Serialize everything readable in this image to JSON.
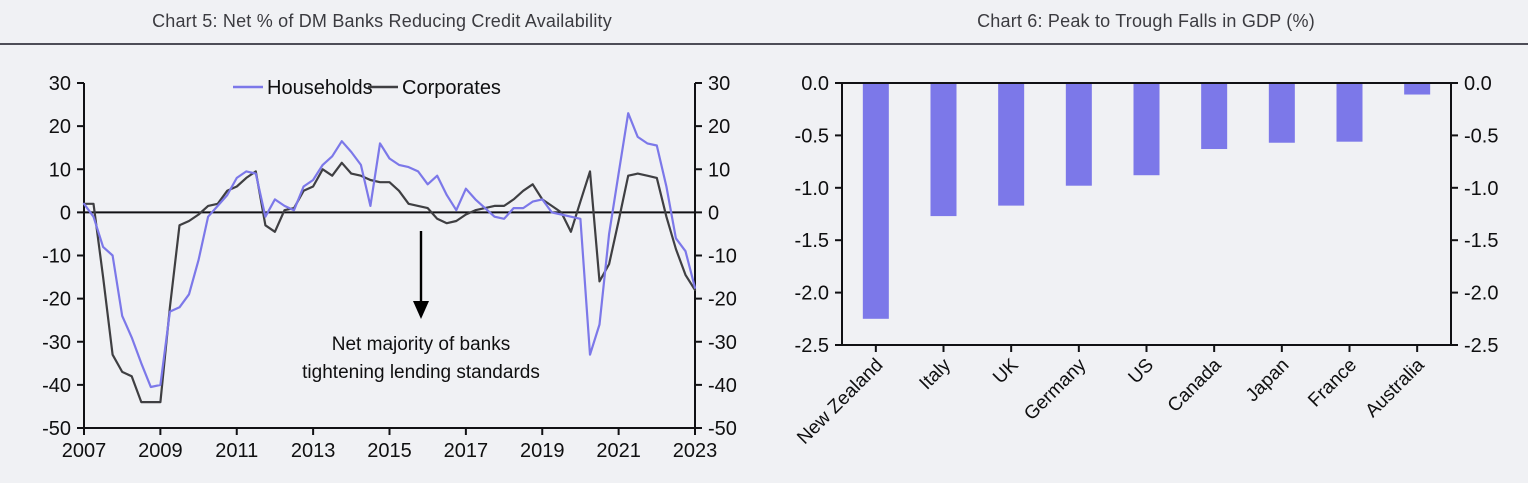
{
  "page": {
    "background_color": "#f0f1f4",
    "accent_purple": "#7c78e9",
    "accent_dark": "#3f3f42"
  },
  "chart_data": [
    {
      "type": "line",
      "title": "Chart 5: Net % of DM Banks Reducing Credit Availability",
      "xlabel": "",
      "ylabel": "",
      "x_start": 2007,
      "x_step": 0.25,
      "xlim": [
        2007,
        2023
      ],
      "ylim": [
        -50,
        30
      ],
      "xtick_labels": [
        "2007",
        "2009",
        "2011",
        "2013",
        "2015",
        "2017",
        "2019",
        "2021",
        "2023"
      ],
      "xtick_values": [
        2007,
        2009,
        2011,
        2013,
        2015,
        2017,
        2019,
        2021,
        2023
      ],
      "ytick_labels": [
        "30",
        "20",
        "10",
        "0",
        "-10",
        "-20",
        "-30",
        "-40",
        "-50"
      ],
      "ytick_values": [
        30,
        20,
        10,
        0,
        -10,
        -20,
        -30,
        -40,
        -50
      ],
      "grid": false,
      "zero_line": true,
      "legend_position": "top-center",
      "annotation": {
        "arrow": "down",
        "line1": "Net majority of banks",
        "line2": "tightening lending standards"
      },
      "series": [
        {
          "name": "Households",
          "color": "#7c78e9",
          "values": [
            2,
            -1,
            -8,
            -10,
            -24,
            -29,
            -35,
            -40.5,
            -40,
            -23,
            -22,
            -19,
            -11,
            -1,
            1.5,
            4,
            8,
            9.5,
            9,
            -1,
            3,
            1.5,
            0.5,
            6,
            7.5,
            11,
            13,
            16.5,
            14,
            11,
            1.5,
            16,
            12.5,
            11,
            10.5,
            9.5,
            6.5,
            8.5,
            4,
            0.5,
            5.5,
            3,
            1,
            -1,
            -1.5,
            1,
            1,
            2.5,
            3,
            0,
            -0.5,
            -1,
            -1.5,
            -33,
            -26,
            -5,
            9,
            23,
            17.5,
            16,
            15.5,
            6,
            -6,
            -9,
            -17.5
          ]
        },
        {
          "name": "Corporates",
          "color": "#3f3f42",
          "values": [
            2,
            2,
            -15,
            -33,
            -37,
            -38,
            -44,
            -44,
            -44,
            -22,
            -3,
            -2,
            -0.5,
            1.5,
            2,
            5,
            6,
            8,
            9.5,
            -3,
            -4.5,
            0.5,
            1,
            5,
            6,
            10,
            8.5,
            11.5,
            9,
            8.5,
            7.5,
            7,
            7,
            5,
            2,
            1.5,
            1,
            -1.5,
            -2.5,
            -2,
            -0.5,
            0.5,
            1,
            1.5,
            1.5,
            3,
            5,
            6.5,
            3,
            1.5,
            0,
            -4.5,
            2.5,
            9.5,
            -16,
            -12,
            -2,
            8.5,
            9,
            8.5,
            8,
            -1,
            -8.5,
            -14.5,
            -18
          ]
        }
      ]
    },
    {
      "type": "bar",
      "title": "Chart 6: Peak to Trough Falls in GDP (%)",
      "xlabel": "",
      "ylabel": "",
      "categories": [
        "New Zealand",
        "Italy",
        "UK",
        "Germany",
        "US",
        "Canada",
        "Japan",
        "France",
        "Australia"
      ],
      "values": [
        -2.25,
        -1.27,
        -1.17,
        -0.98,
        -0.88,
        -0.63,
        -0.57,
        -0.56,
        -0.11
      ],
      "bar_color": "#7c78e9",
      "ylim": [
        -2.5,
        0
      ],
      "ytick_labels": [
        "0.0",
        "-0.5",
        "-1.0",
        "-1.5",
        "-2.0",
        "-2.5"
      ],
      "ytick_values": [
        0,
        -0.5,
        -1.0,
        -1.5,
        -2.0,
        -2.5
      ],
      "grid": false,
      "legend_position": "none"
    }
  ]
}
